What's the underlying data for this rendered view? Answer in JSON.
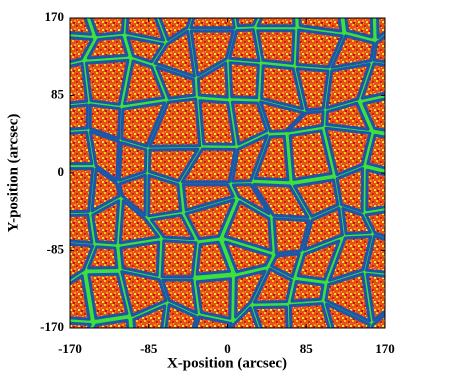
{
  "chart_data": {
    "type": "image",
    "xlabel": "X-position (arcsec)",
    "ylabel": "Y-position (arcsec)",
    "xlim": [
      -170,
      170
    ],
    "ylim": [
      -170,
      170
    ],
    "xticks": [
      -170,
      -85,
      0,
      85,
      170
    ],
    "yticks": [
      -170,
      -85,
      0,
      85,
      170
    ]
  }
}
